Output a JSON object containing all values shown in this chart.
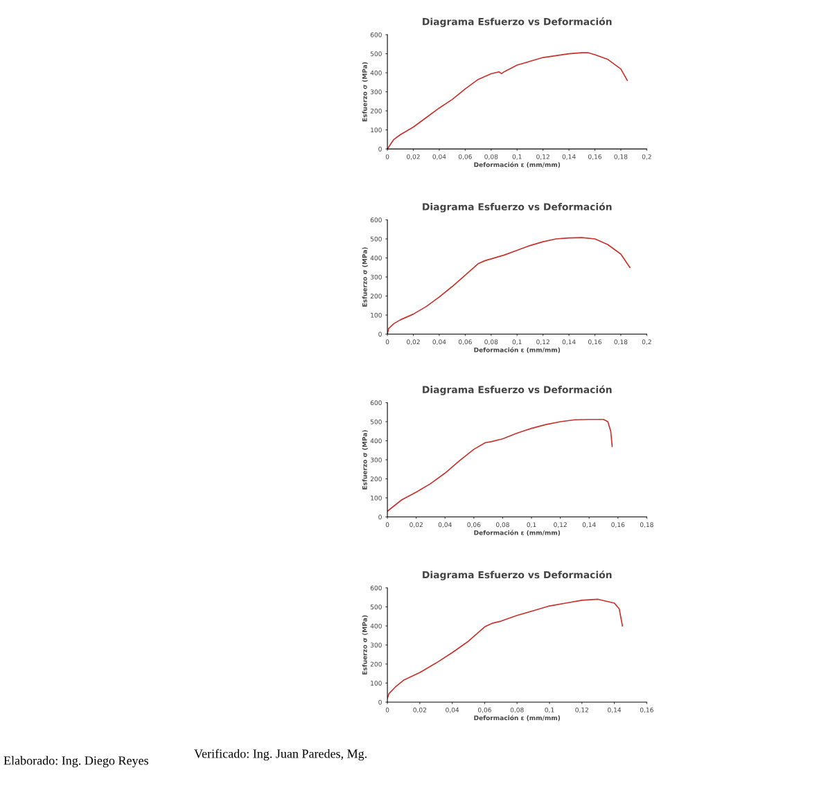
{
  "chart_data": [
    {
      "type": "line",
      "title": "Diagrama Esfuerzo vs Deformación",
      "xlabel": "Deformación ε (mm/mm)",
      "ylabel": "Esfuerzo σ (MPa)",
      "xlim": [
        0,
        0.2
      ],
      "ylim": [
        0,
        600
      ],
      "xticks": [
        0,
        {
          "value": 0.02,
          "label": "0,02"
        },
        {
          "value": 0.04,
          "label": "0,04"
        },
        {
          "value": 0.06,
          "label": "0,06"
        },
        {
          "value": 0.08,
          "label": "0,08"
        },
        {
          "value": 0.1,
          "label": "0,1"
        },
        {
          "value": 0.12,
          "label": "0,12"
        },
        {
          "value": 0.14,
          "label": "0,14"
        },
        {
          "value": 0.16,
          "label": "0,16"
        },
        {
          "value": 0.18,
          "label": "0,18"
        },
        {
          "value": 0.2,
          "label": "0,2"
        }
      ],
      "yticks": [
        0,
        100,
        200,
        300,
        400,
        500,
        600
      ],
      "grid": false,
      "legend": false,
      "marker": "none",
      "line_style": "solid",
      "series": [
        {
          "color": "#c8322d",
          "x": [
            0,
            0.002,
            0.005,
            0.01,
            0.02,
            0.03,
            0.04,
            0.05,
            0.06,
            0.07,
            0.08,
            0.086,
            0.088,
            0.09,
            0.1,
            0.11,
            0.12,
            0.13,
            0.14,
            0.15,
            0.155,
            0.16,
            0.17,
            0.18,
            0.185
          ],
          "values": [
            0,
            20,
            50,
            75,
            115,
            165,
            215,
            260,
            315,
            365,
            395,
            405,
            395,
            405,
            440,
            460,
            480,
            490,
            500,
            505,
            505,
            495,
            470,
            420,
            360
          ]
        }
      ]
    },
    {
      "type": "line",
      "title": "Diagrama Esfuerzo vs Deformación",
      "xlabel": "Deformación ε (mm/mm)",
      "ylabel": "Esfuerzo σ (MPa)",
      "xlim": [
        0,
        0.2
      ],
      "ylim": [
        0,
        600
      ],
      "xticks": [
        0,
        {
          "value": 0.02,
          "label": "0,02"
        },
        {
          "value": 0.04,
          "label": "0,04"
        },
        {
          "value": 0.06,
          "label": "0,06"
        },
        {
          "value": 0.08,
          "label": "0,08"
        },
        {
          "value": 0.1,
          "label": "0,1"
        },
        {
          "value": 0.12,
          "label": "0,12"
        },
        {
          "value": 0.14,
          "label": "0,14"
        },
        {
          "value": 0.16,
          "label": "0,16"
        },
        {
          "value": 0.18,
          "label": "0,18"
        },
        {
          "value": 0.2,
          "label": "0,2"
        }
      ],
      "yticks": [
        0,
        100,
        200,
        300,
        400,
        500,
        600
      ],
      "grid": false,
      "legend": false,
      "marker": "none",
      "line_style": "solid",
      "series": [
        {
          "color": "#c8322d",
          "x": [
            0,
            0.001,
            0.005,
            0.01,
            0.02,
            0.03,
            0.04,
            0.05,
            0.06,
            0.07,
            0.075,
            0.08,
            0.09,
            0.1,
            0.11,
            0.12,
            0.13,
            0.14,
            0.15,
            0.16,
            0.17,
            0.18,
            0.187
          ],
          "values": [
            0,
            30,
            55,
            75,
            105,
            145,
            195,
            250,
            310,
            370,
            385,
            395,
            415,
            440,
            465,
            485,
            500,
            505,
            507,
            500,
            470,
            420,
            350
          ]
        }
      ]
    },
    {
      "type": "line",
      "title": "Diagrama Esfuerzo vs Deformación",
      "xlabel": "Deformación ε (mm/mm)",
      "ylabel": "Esfuerzo σ (MPa)",
      "xlim": [
        0,
        0.18
      ],
      "ylim": [
        0,
        600
      ],
      "xticks": [
        0,
        {
          "value": 0.02,
          "label": "0,02"
        },
        {
          "value": 0.04,
          "label": "0,04"
        },
        {
          "value": 0.06,
          "label": "0,06"
        },
        {
          "value": 0.08,
          "label": "0,08"
        },
        {
          "value": 0.1,
          "label": "0,1"
        },
        {
          "value": 0.12,
          "label": "0,12"
        },
        {
          "value": 0.14,
          "label": "0,14"
        },
        {
          "value": 0.16,
          "label": "0,16"
        },
        {
          "value": 0.18,
          "label": "0,18"
        }
      ],
      "yticks": [
        0,
        100,
        200,
        300,
        400,
        500,
        600
      ],
      "grid": false,
      "legend": false,
      "marker": "none",
      "line_style": "solid",
      "series": [
        {
          "color": "#c8322d",
          "x": [
            0,
            0.005,
            0.01,
            0.02,
            0.03,
            0.04,
            0.05,
            0.06,
            0.068,
            0.072,
            0.08,
            0.09,
            0.1,
            0.11,
            0.12,
            0.13,
            0.14,
            0.15,
            0.153,
            0.155,
            0.156
          ],
          "values": [
            30,
            60,
            90,
            130,
            175,
            230,
            295,
            355,
            390,
            395,
            410,
            440,
            465,
            485,
            500,
            510,
            512,
            512,
            500,
            450,
            370
          ]
        }
      ]
    },
    {
      "type": "line",
      "title": "Diagrama Esfuerzo vs Deformación",
      "xlabel": "Deformación ε (mm/mm)",
      "ylabel": "Esfuerzo σ (MPa)",
      "xlim": [
        0,
        0.16
      ],
      "ylim": [
        0,
        600
      ],
      "xticks": [
        0,
        {
          "value": 0.02,
          "label": "0,02"
        },
        {
          "value": 0.04,
          "label": "0,04"
        },
        {
          "value": 0.06,
          "label": "0,06"
        },
        {
          "value": 0.08,
          "label": "0,08"
        },
        {
          "value": 0.1,
          "label": "0,1"
        },
        {
          "value": 0.12,
          "label": "0,12"
        },
        {
          "value": 0.14,
          "label": "0,14"
        },
        {
          "value": 0.16,
          "label": "0,16"
        }
      ],
      "yticks": [
        0,
        100,
        200,
        300,
        400,
        500,
        600
      ],
      "grid": false,
      "legend": false,
      "marker": "none",
      "line_style": "solid",
      "annotations": [
        "Elaborado: Ing. Diego Reyes",
        "Verificado: Ing. Juan Paredes, Mg."
      ],
      "series": [
        {
          "color": "#c8322d",
          "x": [
            0,
            0.001,
            0.005,
            0.01,
            0.02,
            0.03,
            0.04,
            0.05,
            0.06,
            0.065,
            0.07,
            0.08,
            0.09,
            0.1,
            0.11,
            0.12,
            0.13,
            0.135,
            0.14,
            0.143,
            0.145
          ],
          "values": [
            20,
            45,
            80,
            115,
            155,
            205,
            260,
            320,
            395,
            415,
            425,
            455,
            480,
            505,
            520,
            535,
            540,
            530,
            520,
            490,
            400
          ]
        }
      ]
    }
  ]
}
